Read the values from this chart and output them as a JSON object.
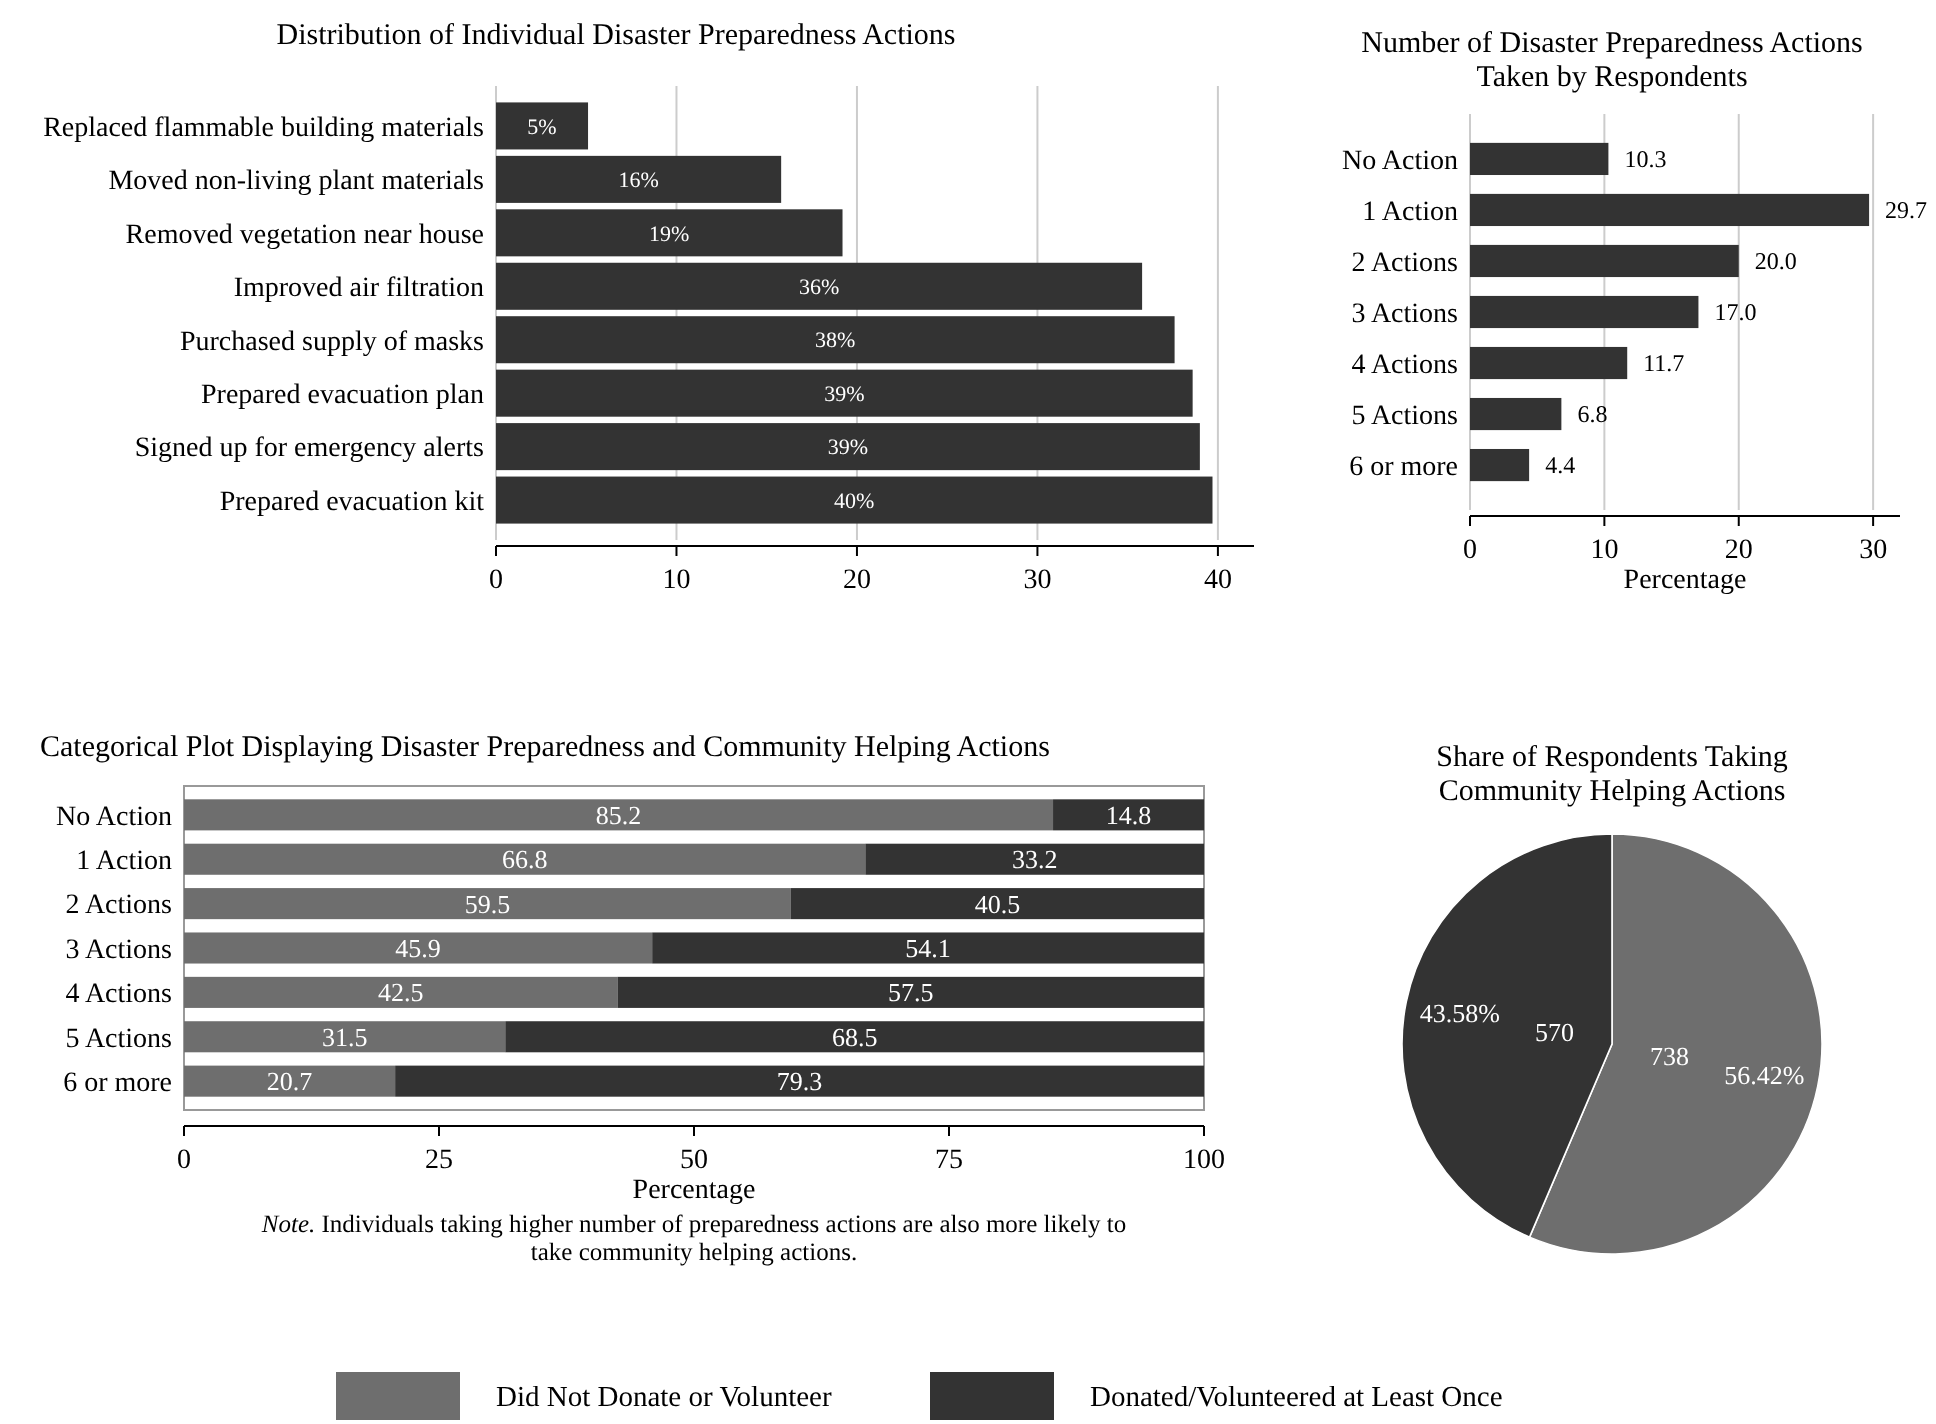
{
  "chart_data": [
    {
      "type": "bar",
      "orientation": "horizontal",
      "title": "Distribution of Individual Disaster Preparedness Actions",
      "categories": [
        "Replaced flammable building materials",
        "Moved non-living plant materials",
        "Removed vegetation near house",
        "Improved air filtration",
        "Purchased supply of masks",
        "Prepared evacuation plan",
        "Signed up for emergency alerts",
        "Prepared evacuation kit"
      ],
      "values": [
        5.1,
        15.8,
        19.2,
        35.8,
        37.6,
        38.6,
        39,
        39.7
      ],
      "value_labels": [
        "5%",
        "16%",
        "19%",
        "36%",
        "38%",
        "39%",
        "39%",
        "40%"
      ],
      "color": "#333333",
      "xlim": [
        0,
        42
      ],
      "xticks": [
        0,
        10,
        20,
        30,
        40
      ],
      "grid": "x"
    },
    {
      "type": "bar",
      "orientation": "horizontal",
      "title": "Number of Disaster Preparedness Actions\nTaken by Respondents",
      "xlabel": "Percentage",
      "categories": [
        "No Action",
        "1 Action",
        "2 Actions",
        "3 Actions",
        "4 Actions",
        "5 Actions",
        "6 or more"
      ],
      "values": [
        10.3,
        29.7,
        20.0,
        17.0,
        11.7,
        6.8,
        4.4
      ],
      "value_labels": [
        "10.3",
        "29.7",
        "20.0",
        "17.0",
        "11.7",
        "6.8",
        "4.4"
      ],
      "color": "#333333",
      "xlim": [
        0,
        32
      ],
      "xticks": [
        0,
        10,
        20,
        30
      ],
      "grid": "x"
    },
    {
      "type": "bar",
      "orientation": "horizontal",
      "stacked": true,
      "title": "Categorical Plot Displaying Disaster Preparedness and Community Helping Actions",
      "xlabel": "Percentage",
      "categories": [
        "No Action",
        "1 Action",
        "2 Actions",
        "3 Actions",
        "4 Actions",
        "5 Actions",
        "6 or more"
      ],
      "series": [
        {
          "color": "#6e6e6e",
          "values": [
            85.2,
            66.8,
            59.5,
            45.9,
            42.5,
            31.5,
            20.7
          ]
        },
        {
          "color": "#333333",
          "values": [
            14.8,
            33.2,
            40.5,
            54.1,
            57.5,
            68.5,
            79.3
          ]
        }
      ],
      "data_labels": true,
      "xlim": [
        0,
        100
      ],
      "xticks": [
        0,
        25,
        50,
        75,
        100
      ],
      "annotations": [
        "Note. Individuals taking higher number of preparedness actions are also more likely to take community helping actions."
      ]
    },
    {
      "type": "pie",
      "title": "Share of Respondents Taking\nCommunity Helping Actions",
      "categories": [
        "Did Not Donate or Volunteer",
        "Donated/Volunteered at Least Once"
      ],
      "values": [
        738,
        570
      ],
      "colors": [
        "#6e6e6e",
        "#333333"
      ],
      "data_labels": true,
      "legend": "bottom",
      "annotations": [
        "56.42%",
        "43.58%"
      ]
    }
  ]
}
